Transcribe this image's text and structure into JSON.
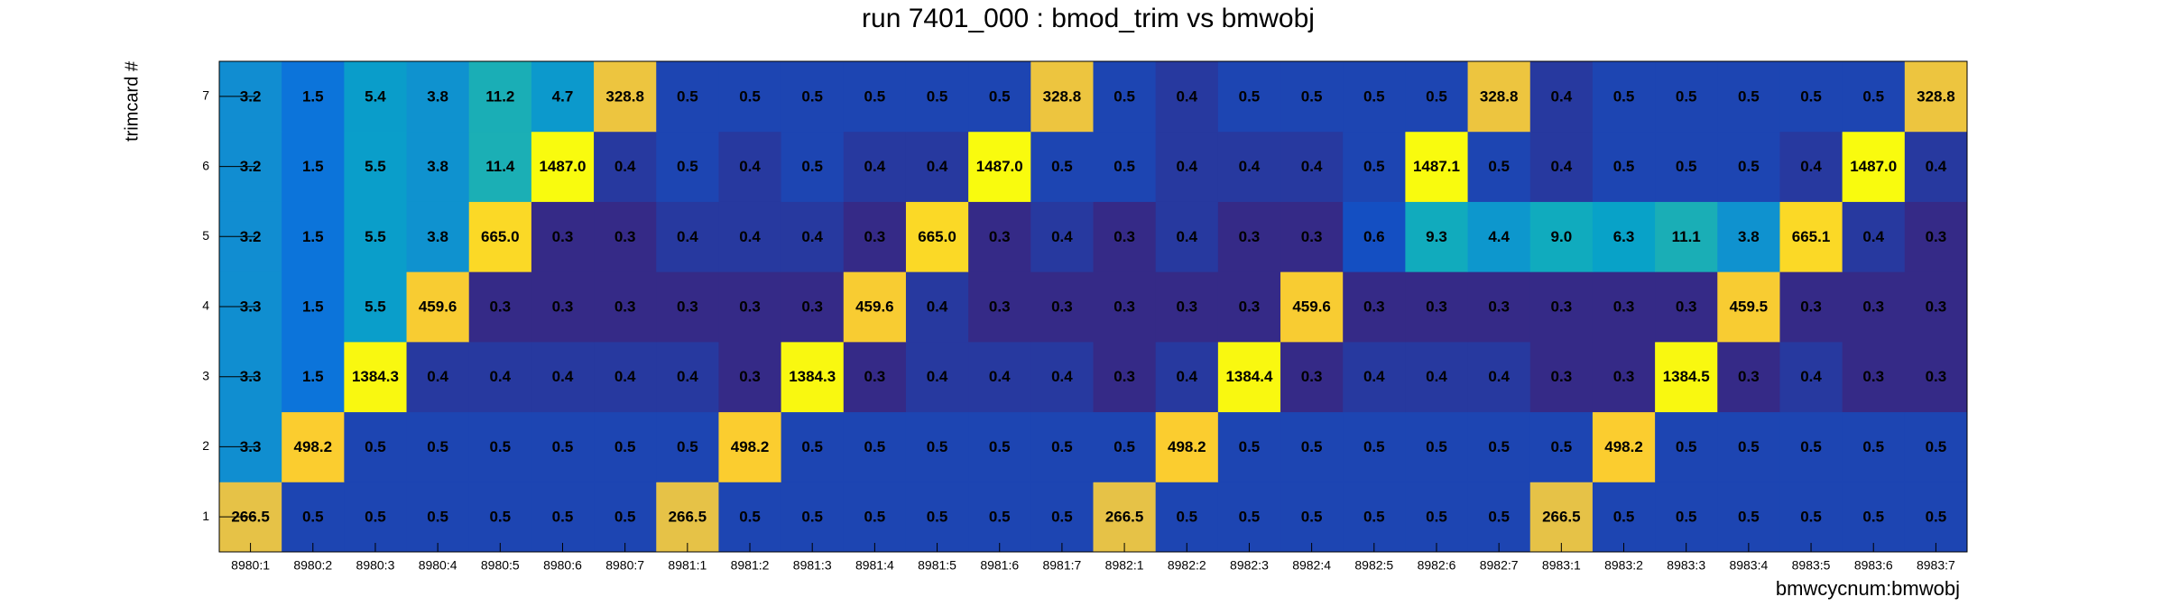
{
  "chart_data": {
    "type": "heatmap",
    "title": "run 7401_000 : bmod_trim vs bmwobj",
    "x_label": "bmwcycnum:bmwobj",
    "y_label": "trimcard #",
    "categories": [
      "8980:1",
      "8980:2",
      "8980:3",
      "8980:4",
      "8980:5",
      "8980:6",
      "8980:7",
      "8981:1",
      "8981:2",
      "8981:3",
      "8981:4",
      "8981:5",
      "8981:6",
      "8981:7",
      "8982:1",
      "8982:2",
      "8982:3",
      "8982:4",
      "8982:5",
      "8982:6",
      "8982:7",
      "8983:1",
      "8983:2",
      "8983:3",
      "8983:4",
      "8983:5",
      "8983:6",
      "8983:7"
    ],
    "y_categories": [
      1,
      2,
      3,
      4,
      5,
      6,
      7
    ],
    "values": [
      [
        266.5,
        0.5,
        0.5,
        0.5,
        0.5,
        0.5,
        0.5,
        266.5,
        0.5,
        0.5,
        0.5,
        0.5,
        0.5,
        0.5,
        266.5,
        0.5,
        0.5,
        0.5,
        0.5,
        0.5,
        0.5,
        266.5,
        0.5,
        0.5,
        0.5,
        0.5,
        0.5,
        0.5
      ],
      [
        3.3,
        498.2,
        0.5,
        0.5,
        0.5,
        0.5,
        0.5,
        0.5,
        498.2,
        0.5,
        0.5,
        0.5,
        0.5,
        0.5,
        0.5,
        498.2,
        0.5,
        0.5,
        0.5,
        0.5,
        0.5,
        0.5,
        498.2,
        0.5,
        0.5,
        0.5,
        0.5,
        0.5
      ],
      [
        3.3,
        1.5,
        1384.3,
        0.4,
        0.4,
        0.4,
        0.4,
        0.4,
        0.3,
        1384.3,
        0.3,
        0.4,
        0.4,
        0.4,
        0.3,
        0.4,
        1384.4,
        0.3,
        0.4,
        0.4,
        0.4,
        0.3,
        0.3,
        1384.5,
        0.3,
        0.4,
        0.3,
        0.3
      ],
      [
        3.3,
        1.5,
        5.5,
        459.6,
        0.3,
        0.3,
        0.3,
        0.3,
        0.3,
        0.3,
        459.6,
        0.4,
        0.3,
        0.3,
        0.3,
        0.3,
        0.3,
        459.6,
        0.3,
        0.3,
        0.3,
        0.3,
        0.3,
        0.3,
        459.5,
        0.3,
        0.3,
        0.3
      ],
      [
        3.2,
        1.5,
        5.5,
        3.8,
        665.0,
        0.3,
        0.3,
        0.4,
        0.4,
        0.4,
        0.3,
        665.0,
        0.3,
        0.4,
        0.3,
        0.4,
        0.3,
        0.3,
        0.6,
        9.3,
        4.4,
        9.0,
        6.3,
        11.1,
        3.8,
        665.1,
        0.4,
        0.3
      ],
      [
        3.2,
        1.5,
        5.5,
        3.8,
        11.4,
        1487.0,
        0.4,
        0.5,
        0.4,
        0.5,
        0.4,
        0.4,
        1487.0,
        0.5,
        0.5,
        0.4,
        0.4,
        0.4,
        0.5,
        1487.1,
        0.5,
        0.4,
        0.5,
        0.5,
        0.5,
        0.4,
        1487.0,
        0.4
      ],
      [
        3.2,
        1.5,
        5.4,
        3.8,
        11.2,
        4.7,
        328.8,
        0.5,
        0.5,
        0.5,
        0.5,
        0.5,
        0.5,
        328.8,
        0.5,
        0.4,
        0.5,
        0.5,
        0.5,
        0.5,
        328.8,
        0.4,
        0.5,
        0.5,
        0.5,
        0.5,
        0.5,
        328.8
      ]
    ],
    "value_labels": [
      [
        "266.5",
        "0.5",
        "0.5",
        "0.5",
        "0.5",
        "0.5",
        "0.5",
        "266.5",
        "0.5",
        "0.5",
        "0.5",
        "0.5",
        "0.5",
        "0.5",
        "266.5",
        "0.5",
        "0.5",
        "0.5",
        "0.5",
        "0.5",
        "0.5",
        "266.5",
        "0.5",
        "0.5",
        "0.5",
        "0.5",
        "0.5",
        "0.5"
      ],
      [
        "3.3",
        "498.2",
        "0.5",
        "0.5",
        "0.5",
        "0.5",
        "0.5",
        "0.5",
        "498.2",
        "0.5",
        "0.5",
        "0.5",
        "0.5",
        "0.5",
        "0.5",
        "498.2",
        "0.5",
        "0.5",
        "0.5",
        "0.5",
        "0.5",
        "0.5",
        "498.2",
        "0.5",
        "0.5",
        "0.5",
        "0.5",
        "0.5"
      ],
      [
        "3.3",
        "1.5",
        "1384.3",
        "0.4",
        "0.4",
        "0.4",
        "0.4",
        "0.4",
        "0.3",
        "1384.3",
        "0.3",
        "0.4",
        "0.4",
        "0.4",
        "0.3",
        "0.4",
        "1384.4",
        "0.3",
        "0.4",
        "0.4",
        "0.4",
        "0.3",
        "0.3",
        "1384.5",
        "0.3",
        "0.4",
        "0.3",
        "0.3"
      ],
      [
        "3.3",
        "1.5",
        "5.5",
        "459.6",
        "0.3",
        "0.3",
        "0.3",
        "0.3",
        "0.3",
        "0.3",
        "459.6",
        "0.4",
        "0.3",
        "0.3",
        "0.3",
        "0.3",
        "0.3",
        "459.6",
        "0.3",
        "0.3",
        "0.3",
        "0.3",
        "0.3",
        "0.3",
        "459.5",
        "0.3",
        "0.3",
        "0.3"
      ],
      [
        "3.2",
        "1.5",
        "5.5",
        "3.8",
        "665.0",
        "0.3",
        "0.3",
        "0.4",
        "0.4",
        "0.4",
        "0.3",
        "665.0",
        "0.3",
        "0.4",
        "0.3",
        "0.4",
        "0.3",
        "0.3",
        "0.6",
        "9.3",
        "4.4",
        "9.0",
        "6.3",
        "11.1",
        "3.8",
        "665.1",
        "0.4",
        "0.3"
      ],
      [
        "3.2",
        "1.5",
        "5.5",
        "3.8",
        "11.4",
        "1487.0",
        "0.4",
        "0.5",
        "0.4",
        "0.5",
        "0.4",
        "0.4",
        "1487.0",
        "0.5",
        "0.5",
        "0.4",
        "0.4",
        "0.4",
        "0.5",
        "1487.1",
        "0.5",
        "0.4",
        "0.5",
        "0.5",
        "0.5",
        "0.4",
        "1487.0",
        "0.4"
      ],
      [
        "3.2",
        "1.5",
        "5.4",
        "3.8",
        "11.2",
        "4.7",
        "328.8",
        "0.5",
        "0.5",
        "0.5",
        "0.5",
        "0.5",
        "0.5",
        "328.8",
        "0.5",
        "0.4",
        "0.5",
        "0.5",
        "0.5",
        "0.5",
        "328.8",
        "0.4",
        "0.5",
        "0.5",
        "0.5",
        "0.5",
        "0.5",
        "328.8"
      ]
    ],
    "zlim": [
      0.3,
      1500
    ],
    "log_z": true,
    "palette": [
      "#352a87",
      "#0363e1",
      "#1485d4",
      "#06a7c6",
      "#38b99e",
      "#92bf73",
      "#d9ba56",
      "#fcce2e",
      "#f9fb0e"
    ]
  }
}
